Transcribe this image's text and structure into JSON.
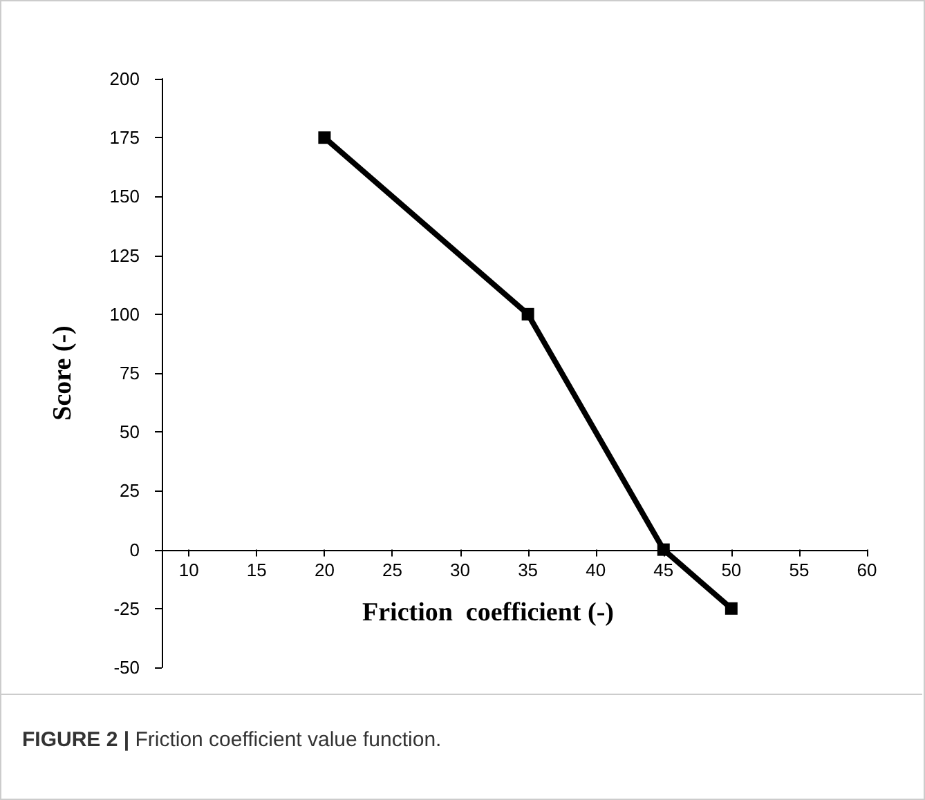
{
  "chart_data": {
    "type": "line",
    "xlabel": "Friction  coefficient (-)",
    "ylabel": "Score (-)",
    "annotations": [
      "FIGURE 2 | Friction coefficient value function."
    ],
    "x": [
      20,
      35,
      45,
      50
    ],
    "series": [
      {
        "color": "#000000",
        "values": [
          175,
          100,
          0,
          -25
        ]
      }
    ],
    "xlim": [
      8,
      60
    ],
    "xticks": [
      10,
      15,
      20,
      25,
      30,
      35,
      40,
      45,
      50,
      55,
      60
    ],
    "ylim": [
      -50,
      200
    ],
    "yticks": [
      -50,
      -25,
      0,
      25,
      50,
      75,
      100,
      125,
      150,
      175,
      200
    ],
    "marker": "square",
    "line_style": "solid"
  }
}
